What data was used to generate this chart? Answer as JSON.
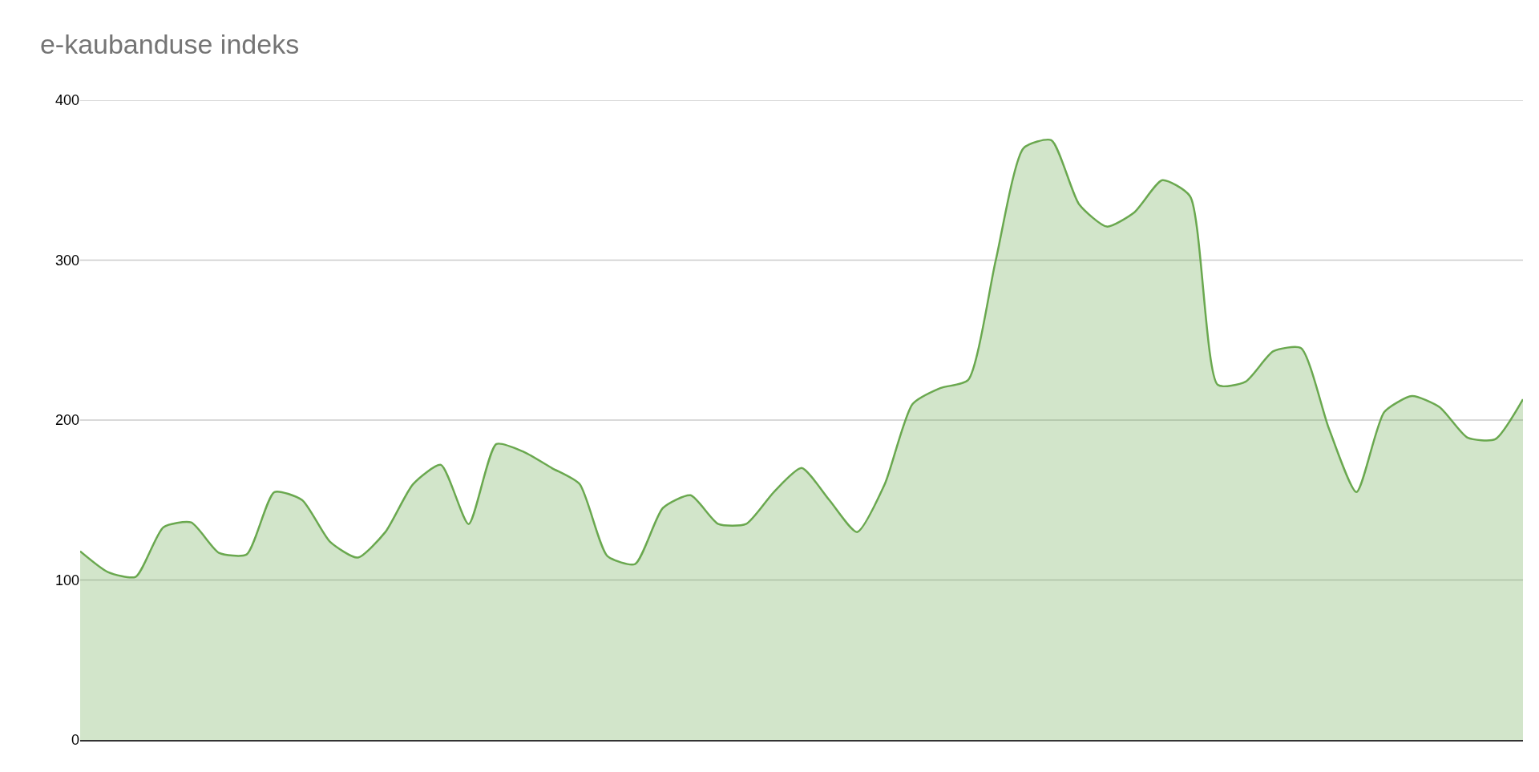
{
  "chart_data": {
    "type": "area",
    "title": "e-kaubanduse indeks",
    "categories": [
      null,
      null,
      null,
      null,
      null,
      null,
      null,
      null,
      null,
      null,
      null,
      null,
      null,
      null,
      null,
      null,
      null,
      null,
      null,
      null,
      null,
      null,
      null,
      null,
      null,
      null,
      null,
      null,
      null,
      null,
      null,
      null,
      null,
      null,
      null,
      null,
      null,
      null,
      null,
      null,
      null,
      null,
      null,
      null,
      null,
      null,
      null,
      null,
      null,
      null,
      null,
      null,
      null
    ],
    "series": [
      {
        "color": "#6aa84f",
        "values": [
          118,
          105,
          102,
          133,
          136,
          117,
          116,
          155,
          150,
          124,
          114,
          130,
          160,
          172,
          135,
          185,
          180,
          170,
          160,
          115,
          110,
          145,
          153,
          135,
          135,
          155,
          170,
          150,
          130,
          160,
          210,
          220,
          225,
          300,
          370,
          375,
          335,
          321,
          330,
          350,
          340,
          222,
          224,
          243,
          245,
          195,
          155,
          205,
          215,
          208,
          189,
          188,
          213
        ]
      }
    ],
    "ylim": [
      0,
      400
    ],
    "yticks": [
      0,
      100,
      200,
      300,
      400
    ],
    "grid": "y",
    "tick_labels": "y"
  }
}
